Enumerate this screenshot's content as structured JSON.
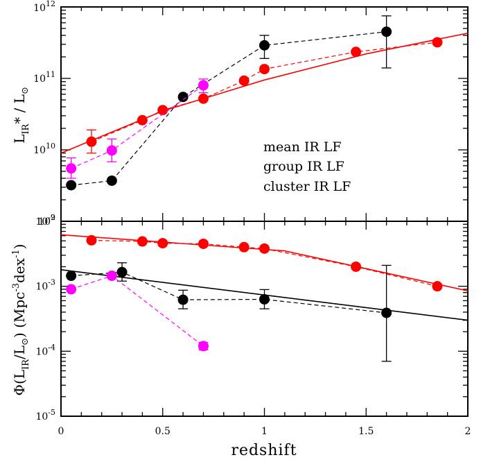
{
  "chart_data": [
    {
      "panel": "top",
      "type": "scatter",
      "xlabel": "redshift",
      "ylabel": {
        "main": "L",
        "sub": "IR",
        "after": "* / L",
        "sun": "⊙"
      },
      "yscale": "log",
      "ylim": [
        1000000000.0,
        1000000000000.0
      ],
      "xlim": [
        0,
        2
      ],
      "yticks": [
        {
          "value": 1000000000.0,
          "base": "10",
          "exp": "9"
        },
        {
          "value": 10000000000.0,
          "base": "10",
          "exp": "10"
        },
        {
          "value": 100000000000.0,
          "base": "10",
          "exp": "11"
        },
        {
          "value": 1000000000000.0,
          "base": "10",
          "exp": "12"
        }
      ],
      "series": [
        {
          "name": "mean IR LF",
          "color": "#ff0000",
          "x": [
            0.15,
            0.4,
            0.5,
            0.7,
            0.9,
            1.0,
            1.45,
            1.85
          ],
          "y": [
            13000000000.0,
            26000000000.0,
            36000000000.0,
            52000000000.0,
            93000000000.0,
            135000000000.0,
            235000000000.0,
            320000000000.0
          ],
          "err": [
            [
              9000000000.0,
              19000000000.0
            ],
            null,
            null,
            null,
            null,
            null,
            null,
            null
          ],
          "fit": {
            "x": [
              0,
              0.5,
              1.0,
              1.5,
              2.0
            ],
            "y": [
              9000000000.0,
              35000000000.0,
              95000000000.0,
              220000000000.0,
              430000000000.0
            ]
          }
        },
        {
          "name": "group IR LF",
          "color": "#000000",
          "x": [
            0.05,
            0.25,
            0.6,
            1.0,
            1.6
          ],
          "y": [
            3200000000.0,
            3700000000.0,
            55000000000.0,
            290000000000.0,
            450000000000.0
          ],
          "err": [
            null,
            null,
            null,
            [
              190000000000.0,
              400000000000.0
            ],
            [
              140000000000.0,
              750000000000.0
            ]
          ]
        },
        {
          "name": "cluster IR LF",
          "color": "#ff00ff",
          "x": [
            0.05,
            0.25,
            0.7
          ],
          "y": [
            5500000000.0,
            9800000000.0,
            80000000000.0
          ],
          "err": [
            [
              4000000000.0,
              7700000000.0
            ],
            [
              6800000000.0,
              14200000000.0
            ],
            [
              63000000000.0,
              98000000000.0
            ]
          ]
        }
      ]
    },
    {
      "panel": "bottom",
      "type": "scatter",
      "xlabel": "redshift",
      "ylabel": {
        "pre": "Φ(L",
        "sub": "IR",
        "mid": "/L",
        "sun": "⊙",
        "units": ")  (Mpc",
        "exp1": "-3",
        "dex": "dex",
        "exp2": "-1",
        "close": ")"
      },
      "yscale": "log",
      "ylim": [
        1e-05,
        0.01
      ],
      "xlim": [
        0,
        2
      ],
      "xticks": [
        "0",
        "0.5",
        "1",
        "1.5",
        "2"
      ],
      "yticks": [
        {
          "value": 1e-05,
          "base": "10",
          "exp": "-5"
        },
        {
          "value": 0.0001,
          "base": "10",
          "exp": "-4"
        },
        {
          "value": 0.001,
          "base": "10",
          "exp": "-3"
        },
        {
          "value": 0.01,
          "base": "10",
          "exp": "-2"
        }
      ],
      "series": [
        {
          "name": "mean IR LF",
          "color": "#ff0000",
          "x": [
            0.15,
            0.4,
            0.5,
            0.7,
            0.9,
            1.0,
            1.45,
            1.85
          ],
          "y": [
            0.0051,
            0.0049,
            0.0046,
            0.0045,
            0.004,
            0.0038,
            0.002,
            0.001
          ],
          "err": [
            null,
            null,
            null,
            null,
            null,
            null,
            null,
            null
          ],
          "fit": {
            "x": [
              0,
              1.1,
              2.0
            ],
            "y": [
              0.0062,
              0.0035,
              0.00085
            ]
          }
        },
        {
          "name": "group IR LF",
          "color": "#000000",
          "x": [
            0.05,
            0.3,
            0.6,
            1.0,
            1.6
          ],
          "y": [
            0.00145,
            0.00165,
            0.00062,
            0.00063,
            0.00039
          ],
          "err": [
            null,
            [
              0.0012,
              0.0023
            ],
            [
              0.00045,
              0.00087
            ],
            [
              0.00045,
              0.00089
            ],
            [
              7e-05,
              0.0021
            ]
          ],
          "fit": {
            "x": [
              0,
              2.0
            ],
            "y": [
              0.0018,
              0.0003
            ]
          }
        },
        {
          "name": "cluster IR LF",
          "color": "#ff00ff",
          "x": [
            0.05,
            0.25,
            0.7
          ],
          "y": [
            0.0009,
            0.00145,
            0.00012
          ],
          "err": [
            null,
            null,
            [
              0.000105,
              0.000137
            ]
          ]
        }
      ]
    }
  ],
  "legend": [
    {
      "label": "mean IR LF",
      "color": "#ff0000"
    },
    {
      "label": "group IR LF",
      "color": "#000000"
    },
    {
      "label": "cluster IR LF",
      "color": "#ff00ff"
    }
  ]
}
